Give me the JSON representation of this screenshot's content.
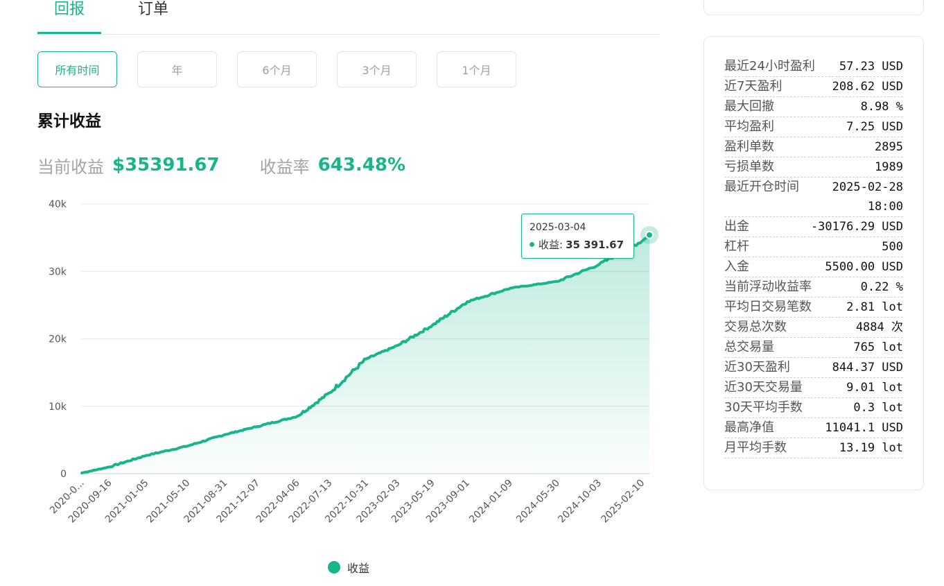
{
  "tabs": [
    {
      "label": "回报",
      "active": true
    },
    {
      "label": "订单",
      "active": false
    }
  ],
  "time_ranges": [
    {
      "label": "所有时间",
      "active": true
    },
    {
      "label": "年",
      "active": false
    },
    {
      "label": "6个月",
      "active": false
    },
    {
      "label": "3个月",
      "active": false
    },
    {
      "label": "1个月",
      "active": false
    }
  ],
  "section_title": "累计收益",
  "summary": {
    "current_label": "当前收益",
    "current_value": "$35391.67",
    "rate_label": "收益率",
    "rate_value": "643.48%"
  },
  "colors": {
    "accent": "#19b58a"
  },
  "chart_data": {
    "type": "area",
    "title": "",
    "xlabel": "",
    "ylabel": "",
    "ylim": [
      0,
      40000
    ],
    "yticks": [
      "0",
      "10k",
      "20k",
      "30k",
      "40k"
    ],
    "x": [
      "2020-0...",
      "2020-09-16",
      "2021-01-05",
      "2021-05-10",
      "2021-08-31",
      "2021-12-07",
      "2022-04-06",
      "2022-07-13",
      "2022-10-31",
      "2023-02-03",
      "2023-05-19",
      "2023-09-01",
      "2024-01-09",
      "2024-05-30",
      "2024-10-03",
      "2025-02-10",
      "2025-03-04"
    ],
    "x_tick_labels": [
      "2020-0...",
      "2020-09-16",
      "2021-01-05",
      "2021-05-10",
      "2021-08-31",
      "2021-12-07",
      "2022-04-06",
      "2022-07-13",
      "2022-10-31",
      "2023-02-03",
      "2023-05-19",
      "2023-09-01",
      "2024-01-09",
      "2024-05-30",
      "2024-10-03",
      "2025-02-10"
    ],
    "series": [
      {
        "name": "收益",
        "values": [
          100,
          1000,
          2700,
          4100,
          5800,
          7000,
          8500,
          12000,
          17000,
          19000,
          22000,
          25500,
          27500,
          28500,
          31000,
          34500,
          35391.67
        ]
      }
    ],
    "grid": true,
    "legend": "bottom-center",
    "tooltip": {
      "date": "2025-03-04",
      "label": "收益",
      "value": "35 391.67"
    }
  },
  "stats": [
    {
      "label": "最近24小时盈利",
      "value": "57.23 USD"
    },
    {
      "label": "近7天盈利",
      "value": "208.62 USD"
    },
    {
      "label": "最大回撤",
      "value": "8.98 %"
    },
    {
      "label": "平均盈利",
      "value": "7.25 USD"
    },
    {
      "label": "盈利单数",
      "value": "2895"
    },
    {
      "label": "亏损单数",
      "value": "1989"
    },
    {
      "label": "最近开仓时间",
      "value": "2025-02-28 18:00"
    },
    {
      "label": "出金",
      "value": "-30176.29 USD"
    },
    {
      "label": "杠杆",
      "value": "500"
    },
    {
      "label": "入金",
      "value": "5500.00 USD"
    },
    {
      "label": "当前浮动收益率",
      "value": "0.22 %"
    },
    {
      "label": "平均日交易笔数",
      "value": "2.81 lot"
    },
    {
      "label": "交易总次数",
      "value": "4884 次"
    },
    {
      "label": "总交易量",
      "value": "765 lot"
    },
    {
      "label": "近30天盈利",
      "value": "844.37 USD"
    },
    {
      "label": "近30天交易量",
      "value": "9.01 lot"
    },
    {
      "label": "30天平均手数",
      "value": "0.3 lot"
    },
    {
      "label": "最高净值",
      "value": "11041.1 USD"
    },
    {
      "label": "月平均手数",
      "value": "13.19 lot"
    }
  ]
}
